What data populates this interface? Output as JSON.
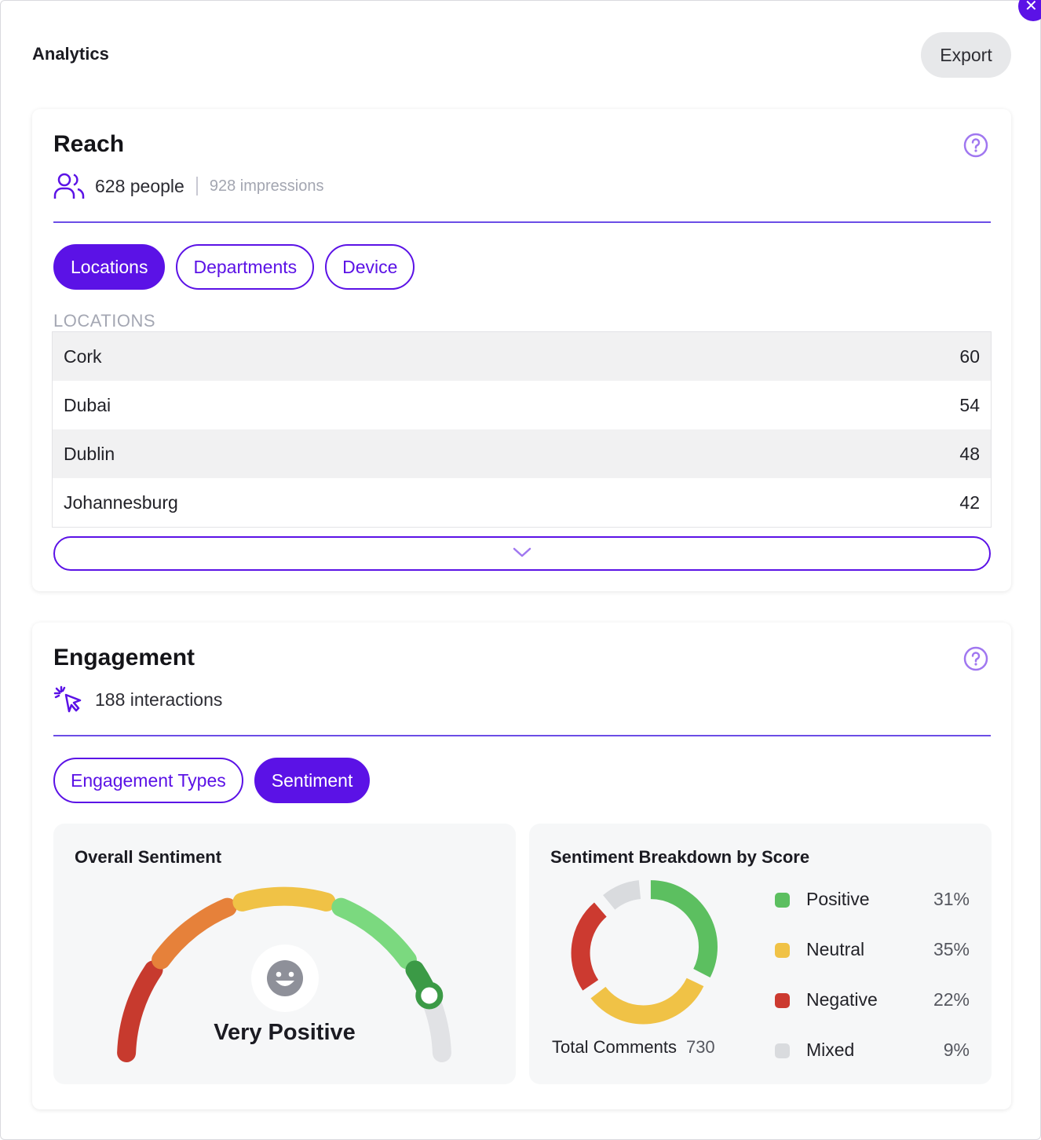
{
  "header": {
    "title": "Analytics",
    "export_label": "Export"
  },
  "reach": {
    "title": "Reach",
    "people": "628 people",
    "impressions": "928 impressions",
    "tabs": [
      {
        "label": "Locations",
        "active": true
      },
      {
        "label": "Departments",
        "active": false
      },
      {
        "label": "Device",
        "active": false
      }
    ],
    "section_label": "LOCATIONS",
    "rows": [
      {
        "name": "Cork",
        "value": "60"
      },
      {
        "name": "Dubai",
        "value": "54"
      },
      {
        "name": "Dublin",
        "value": "48"
      },
      {
        "name": "Johannesburg",
        "value": "42"
      }
    ]
  },
  "engagement": {
    "title": "Engagement",
    "interactions": "188 interactions",
    "tabs": [
      {
        "label": "Engagement Types",
        "active": false
      },
      {
        "label": "Sentiment",
        "active": true
      }
    ],
    "overall": {
      "title": "Overall Sentiment",
      "label": "Very Positive"
    },
    "breakdown": {
      "title": "Sentiment Breakdown by Score",
      "total_label": "Total Comments",
      "total_value": "730",
      "items": [
        {
          "label": "Positive",
          "pct": "31%",
          "color": "#5cbf60"
        },
        {
          "label": "Neutral",
          "pct": "35%",
          "color": "#f0c246"
        },
        {
          "label": "Negative",
          "pct": "22%",
          "color": "#cc3a30"
        },
        {
          "label": "Mixed",
          "pct": "9%",
          "color": "#d9dbde"
        }
      ]
    }
  },
  "colors": {
    "accent": "#5b12e6",
    "divider": "#6b4de6"
  }
}
